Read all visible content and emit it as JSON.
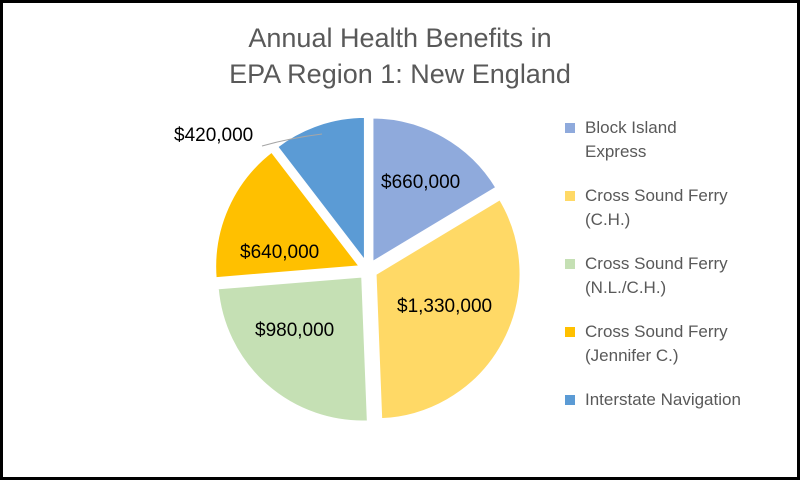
{
  "title_line1": "Annual Health Benefits in",
  "title_line2": "EPA Region 1: New England",
  "chart_data": {
    "type": "pie",
    "title": "Annual Health Benefits in EPA Region 1: New England",
    "categories": [
      "Block Island Express",
      "Cross Sound Ferry (C.H.)",
      "Cross Sound Ferry (N.L./C.H.)",
      "Cross Sound Ferry (Jennifer C.)",
      "Interstate Navigation"
    ],
    "values": [
      660000,
      1330000,
      980000,
      640000,
      420000
    ],
    "data_labels": [
      "$660,000",
      "$1,330,000",
      "$980,000",
      "$640,000",
      "$420,000"
    ],
    "colors": [
      "#8faadc",
      "#ffd966",
      "#c5e0b4",
      "#ffc000",
      "#5b9bd5"
    ],
    "legend_position": "right",
    "exploded": true
  },
  "legend": [
    {
      "line1": "Block Island",
      "line2": "Express",
      "color": "#8faadc"
    },
    {
      "line1": "Cross Sound Ferry",
      "line2": "(C.H.)",
      "color": "#ffd966"
    },
    {
      "line1": "Cross Sound Ferry",
      "line2": "(N.L./C.H.)",
      "color": "#c5e0b4"
    },
    {
      "line1": "Cross Sound Ferry",
      "line2": "(Jennifer C.)",
      "color": "#ffc000"
    },
    {
      "line1": "Interstate Navigation",
      "line2": "",
      "color": "#5b9bd5"
    }
  ],
  "labels": {
    "block_island": "$660,000",
    "ch": "$1,330,000",
    "nlch": "$980,000",
    "jennifer": "$640,000",
    "interstate": "$420,000"
  }
}
